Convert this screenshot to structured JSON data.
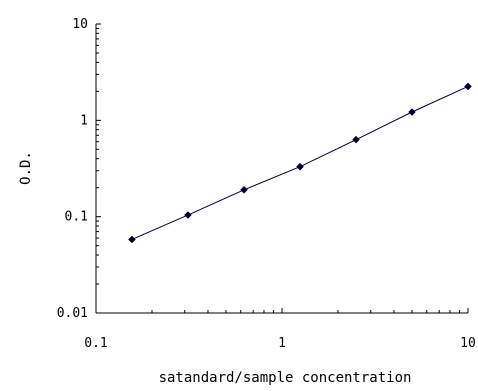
{
  "chart_data": {
    "type": "line",
    "title": "",
    "xlabel": "satandard/sample concentration",
    "ylabel": "O.D.",
    "x_scale": "log",
    "y_scale": "log",
    "xlim": [
      0.1,
      10
    ],
    "ylim": [
      0.01,
      10
    ],
    "x_ticks": [
      "0.1",
      "1",
      "10"
    ],
    "y_ticks": [
      "0.01",
      "0.1",
      "1",
      "10"
    ],
    "grid": false,
    "legend": "none",
    "series": [
      {
        "marker": "diamond",
        "color": "#000033",
        "x": [
          0.156,
          0.312,
          0.625,
          1.25,
          2.5,
          5,
          10
        ],
        "y": [
          0.058,
          0.104,
          0.19,
          0.33,
          0.63,
          1.22,
          2.25
        ]
      }
    ]
  }
}
